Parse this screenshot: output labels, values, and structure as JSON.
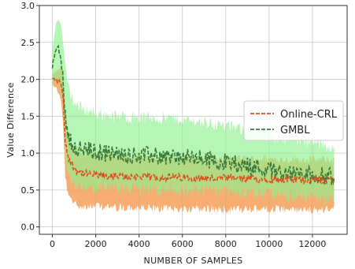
{
  "chart_data": {
    "type": "line",
    "title": "",
    "xlabel": "NUMBER OF SAMPLES",
    "ylabel": "Value Difference",
    "xlim": [
      -600,
      13600
    ],
    "ylim": [
      -0.1,
      3.0
    ],
    "xticks": [
      0,
      2000,
      4000,
      6000,
      8000,
      10000,
      12000
    ],
    "xtick_labels": [
      "0",
      "2000",
      "4000",
      "6000",
      "8000",
      "10000",
      "12000"
    ],
    "yticks": [
      0.0,
      0.5,
      1.0,
      1.5,
      2.0,
      2.5,
      3.0
    ],
    "ytick_labels": [
      "0.0",
      "0.5",
      "1.0",
      "1.5",
      "2.0",
      "2.5",
      "3.0"
    ],
    "grid": true,
    "legend_position": "center-right",
    "series": [
      {
        "name": "Online-CRL",
        "line_color": "#d9501e",
        "band_color": "#f5a05a",
        "style": "dashed",
        "x": [
          0,
          100,
          200,
          300,
          400,
          500,
          600,
          700,
          800,
          1000,
          1200,
          1500,
          2000,
          2500,
          3000,
          4000,
          5000,
          6000,
          7000,
          8000,
          9000,
          10000,
          11000,
          12000,
          13000
        ],
        "y": [
          2.0,
          2.0,
          1.98,
          1.97,
          1.95,
          1.75,
          1.15,
          1.0,
          0.9,
          0.8,
          0.75,
          0.72,
          0.7,
          0.69,
          0.68,
          0.68,
          0.67,
          0.67,
          0.66,
          0.66,
          0.65,
          0.65,
          0.64,
          0.64,
          0.64
        ],
        "lower": [
          1.95,
          1.92,
          1.88,
          1.82,
          1.72,
          1.4,
          0.7,
          0.5,
          0.4,
          0.35,
          0.32,
          0.3,
          0.3,
          0.29,
          0.28,
          0.28,
          0.27,
          0.27,
          0.27,
          0.26,
          0.26,
          0.26,
          0.26,
          0.26,
          0.26
        ],
        "upper": [
          2.05,
          2.08,
          2.1,
          2.12,
          2.15,
          2.1,
          1.6,
          1.3,
          1.15,
          1.05,
          1.0,
          0.98,
          0.96,
          0.95,
          0.94,
          0.93,
          0.92,
          0.92,
          0.91,
          0.9,
          0.9,
          0.9,
          0.89,
          0.89,
          0.88
        ]
      },
      {
        "name": "GMBL",
        "line_color": "#3b7a3b",
        "band_color": "#8ef08e",
        "style": "dashed",
        "x": [
          0,
          100,
          200,
          300,
          400,
          500,
          600,
          700,
          800,
          1000,
          1200,
          1500,
          2000,
          2500,
          3000,
          4000,
          5000,
          6000,
          7000,
          8000,
          9000,
          10000,
          11000,
          12000,
          13000
        ],
        "y": [
          2.15,
          2.3,
          2.45,
          2.4,
          2.25,
          2.0,
          1.5,
          1.3,
          1.2,
          1.1,
          1.05,
          1.05,
          1.02,
          1.0,
          0.98,
          0.97,
          0.96,
          0.94,
          0.92,
          0.88,
          0.83,
          0.78,
          0.72,
          0.7,
          0.68
        ],
        "lower": [
          1.9,
          2.0,
          2.05,
          2.0,
          1.85,
          1.6,
          1.0,
          0.8,
          0.7,
          0.62,
          0.6,
          0.58,
          0.57,
          0.56,
          0.55,
          0.55,
          0.54,
          0.54,
          0.53,
          0.52,
          0.5,
          0.48,
          0.45,
          0.43,
          0.42
        ],
        "upper": [
          2.4,
          2.6,
          2.8,
          2.8,
          2.7,
          2.5,
          2.1,
          1.9,
          1.8,
          1.65,
          1.6,
          1.55,
          1.5,
          1.48,
          1.46,
          1.45,
          1.44,
          1.42,
          1.38,
          1.33,
          1.28,
          1.22,
          1.15,
          1.1,
          1.05
        ]
      }
    ]
  }
}
